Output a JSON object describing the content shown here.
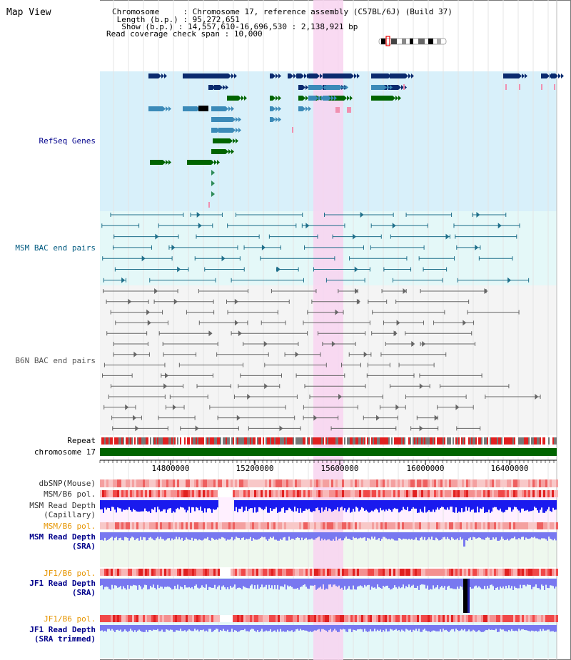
{
  "header": {
    "title": "Map View",
    "info": {
      "chromosome_label": "Chromosome    ",
      "chromosome_value": "Chromosome 17, reference assembly (C57BL/6J) (Build 37)",
      "length_label": " Length (b.p.)",
      "length_value": "95,272,651",
      "show_label": "  Show (b.p.)",
      "show_value": "14,557,610-16,696,530 : 2,138,921 bp",
      "coverage_label": "Read coverage check span",
      "coverage_value": "10,000"
    }
  },
  "tracks": {
    "refseq": "RefSeq Genes",
    "msm_bac": "MSM BAC end pairs",
    "b6n_bac": "B6N BAC end pairs",
    "repeat": "Repeat",
    "chromosome": "chromosome 17",
    "dbsnp": "dbSNP(Mouse)",
    "msm_b6_pol": "MSM/B6 pol.",
    "msm_rd_cap": "MSM Read Depth\n(Capillary)",
    "msm_b6_pol2": "MSM/B6 pol.",
    "msm_rd_sra": "MSM Read Depth\n(SRA)",
    "jf1_b6_pol": "JF1/B6 pol.",
    "jf1_rd_sra": "JF1 Read Depth\n(SRA)",
    "jf1_b6_pol2": "JF1/B6 pol.",
    "jf1_rd_trim": "JF1 Read Depth\n(SRA trimmed)"
  },
  "axis": {
    "ticks": [
      "14800000",
      "15200000",
      "15600000",
      "16000000",
      "16400000"
    ]
  },
  "colors": {
    "refseq_bg": "#d8f0fa",
    "msm_bg": "#e4f8f8",
    "b6n_bg": "#f4f4f4",
    "highlight": "#f8d4f0",
    "chromosome": "#006400",
    "repeat_red": "#e02020",
    "repeat_gray": "#777777",
    "gene_dark": "#0a2a6e",
    "gene_mid": "#3b8ab8",
    "gene_green": "#006400",
    "msm_line": "#1f6f8a",
    "b6n_line": "#666666",
    "depth_blue": "#1a1aee",
    "depth_light": "#7878f0"
  }
}
